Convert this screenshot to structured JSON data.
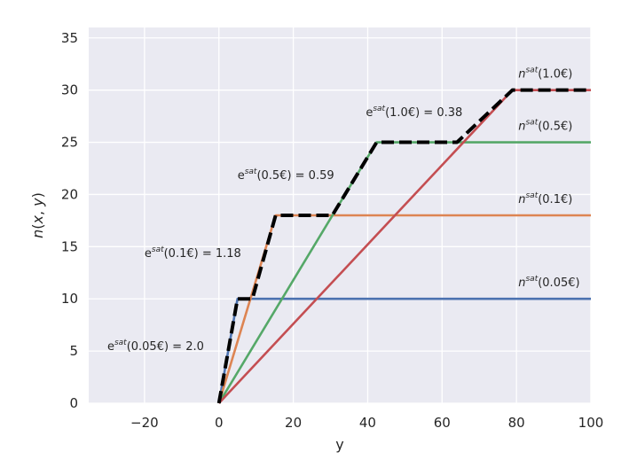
{
  "chart_data": {
    "type": "line",
    "title": "",
    "xlabel": "y",
    "ylabel": "n(x, y)",
    "xlim": [
      -35,
      100
    ],
    "ylim": [
      0,
      36
    ],
    "xticks": [
      -20,
      0,
      20,
      40,
      60,
      80,
      100
    ],
    "yticks": [
      0,
      5,
      10,
      15,
      20,
      25,
      30,
      35
    ],
    "xtick_labels": [
      "−20",
      "0",
      "20",
      "40",
      "60",
      "80",
      "100"
    ],
    "ytick_labels": [
      "0",
      "5",
      "10",
      "15",
      "20",
      "25",
      "30",
      "35"
    ],
    "grid": true,
    "background": "#eaeaf2",
    "series": [
      {
        "color": "#4c72b0",
        "x": [
          0,
          5,
          100
        ],
        "y": [
          0,
          10,
          10
        ]
      },
      {
        "color": "#dd8452",
        "x": [
          0,
          15.25,
          100
        ],
        "y": [
          0,
          18,
          18
        ]
      },
      {
        "color": "#55a868",
        "x": [
          0,
          42.4,
          100
        ],
        "y": [
          0,
          25,
          25
        ]
      },
      {
        "color": "#c44e52",
        "x": [
          0,
          78.9,
          100
        ],
        "y": [
          0,
          30,
          30
        ]
      },
      {
        "color": "#000000",
        "dashed": true,
        "x": [
          0,
          5,
          9,
          15.25,
          30.5,
          42.4,
          64,
          78.9,
          100
        ],
        "y": [
          0,
          10,
          10,
          18,
          18,
          25,
          25,
          30,
          30
        ]
      }
    ],
    "annotations": [
      {
        "base": "n",
        "sup": "sat",
        "rest": "(1.0€)",
        "x": 80.5,
        "y": 31.2
      },
      {
        "base": "n",
        "sup": "sat",
        "rest": "(0.5€)",
        "x": 80.5,
        "y": 26.2
      },
      {
        "base": "n",
        "sup": "sat",
        "rest": "(0.1€)",
        "x": 80.5,
        "y": 19.2
      },
      {
        "base": "n",
        "sup": "sat",
        "rest": "(0.05€)",
        "x": 80.5,
        "y": 11.2
      },
      {
        "base": "e",
        "sup": "sat",
        "rest": "(1.0€) = 0.38",
        "x": 39.5,
        "y": 27.5
      },
      {
        "base": "e",
        "sup": "sat",
        "rest": "(0.5€) = 0.59",
        "x": 5,
        "y": 21.5
      },
      {
        "base": "e",
        "sup": "sat",
        "rest": "(0.1€) = 1.18",
        "x": -20,
        "y": 14
      },
      {
        "base": "e",
        "sup": "sat",
        "rest": "(0.05€) = 2.0",
        "x": -30,
        "y": 5.1
      }
    ]
  }
}
